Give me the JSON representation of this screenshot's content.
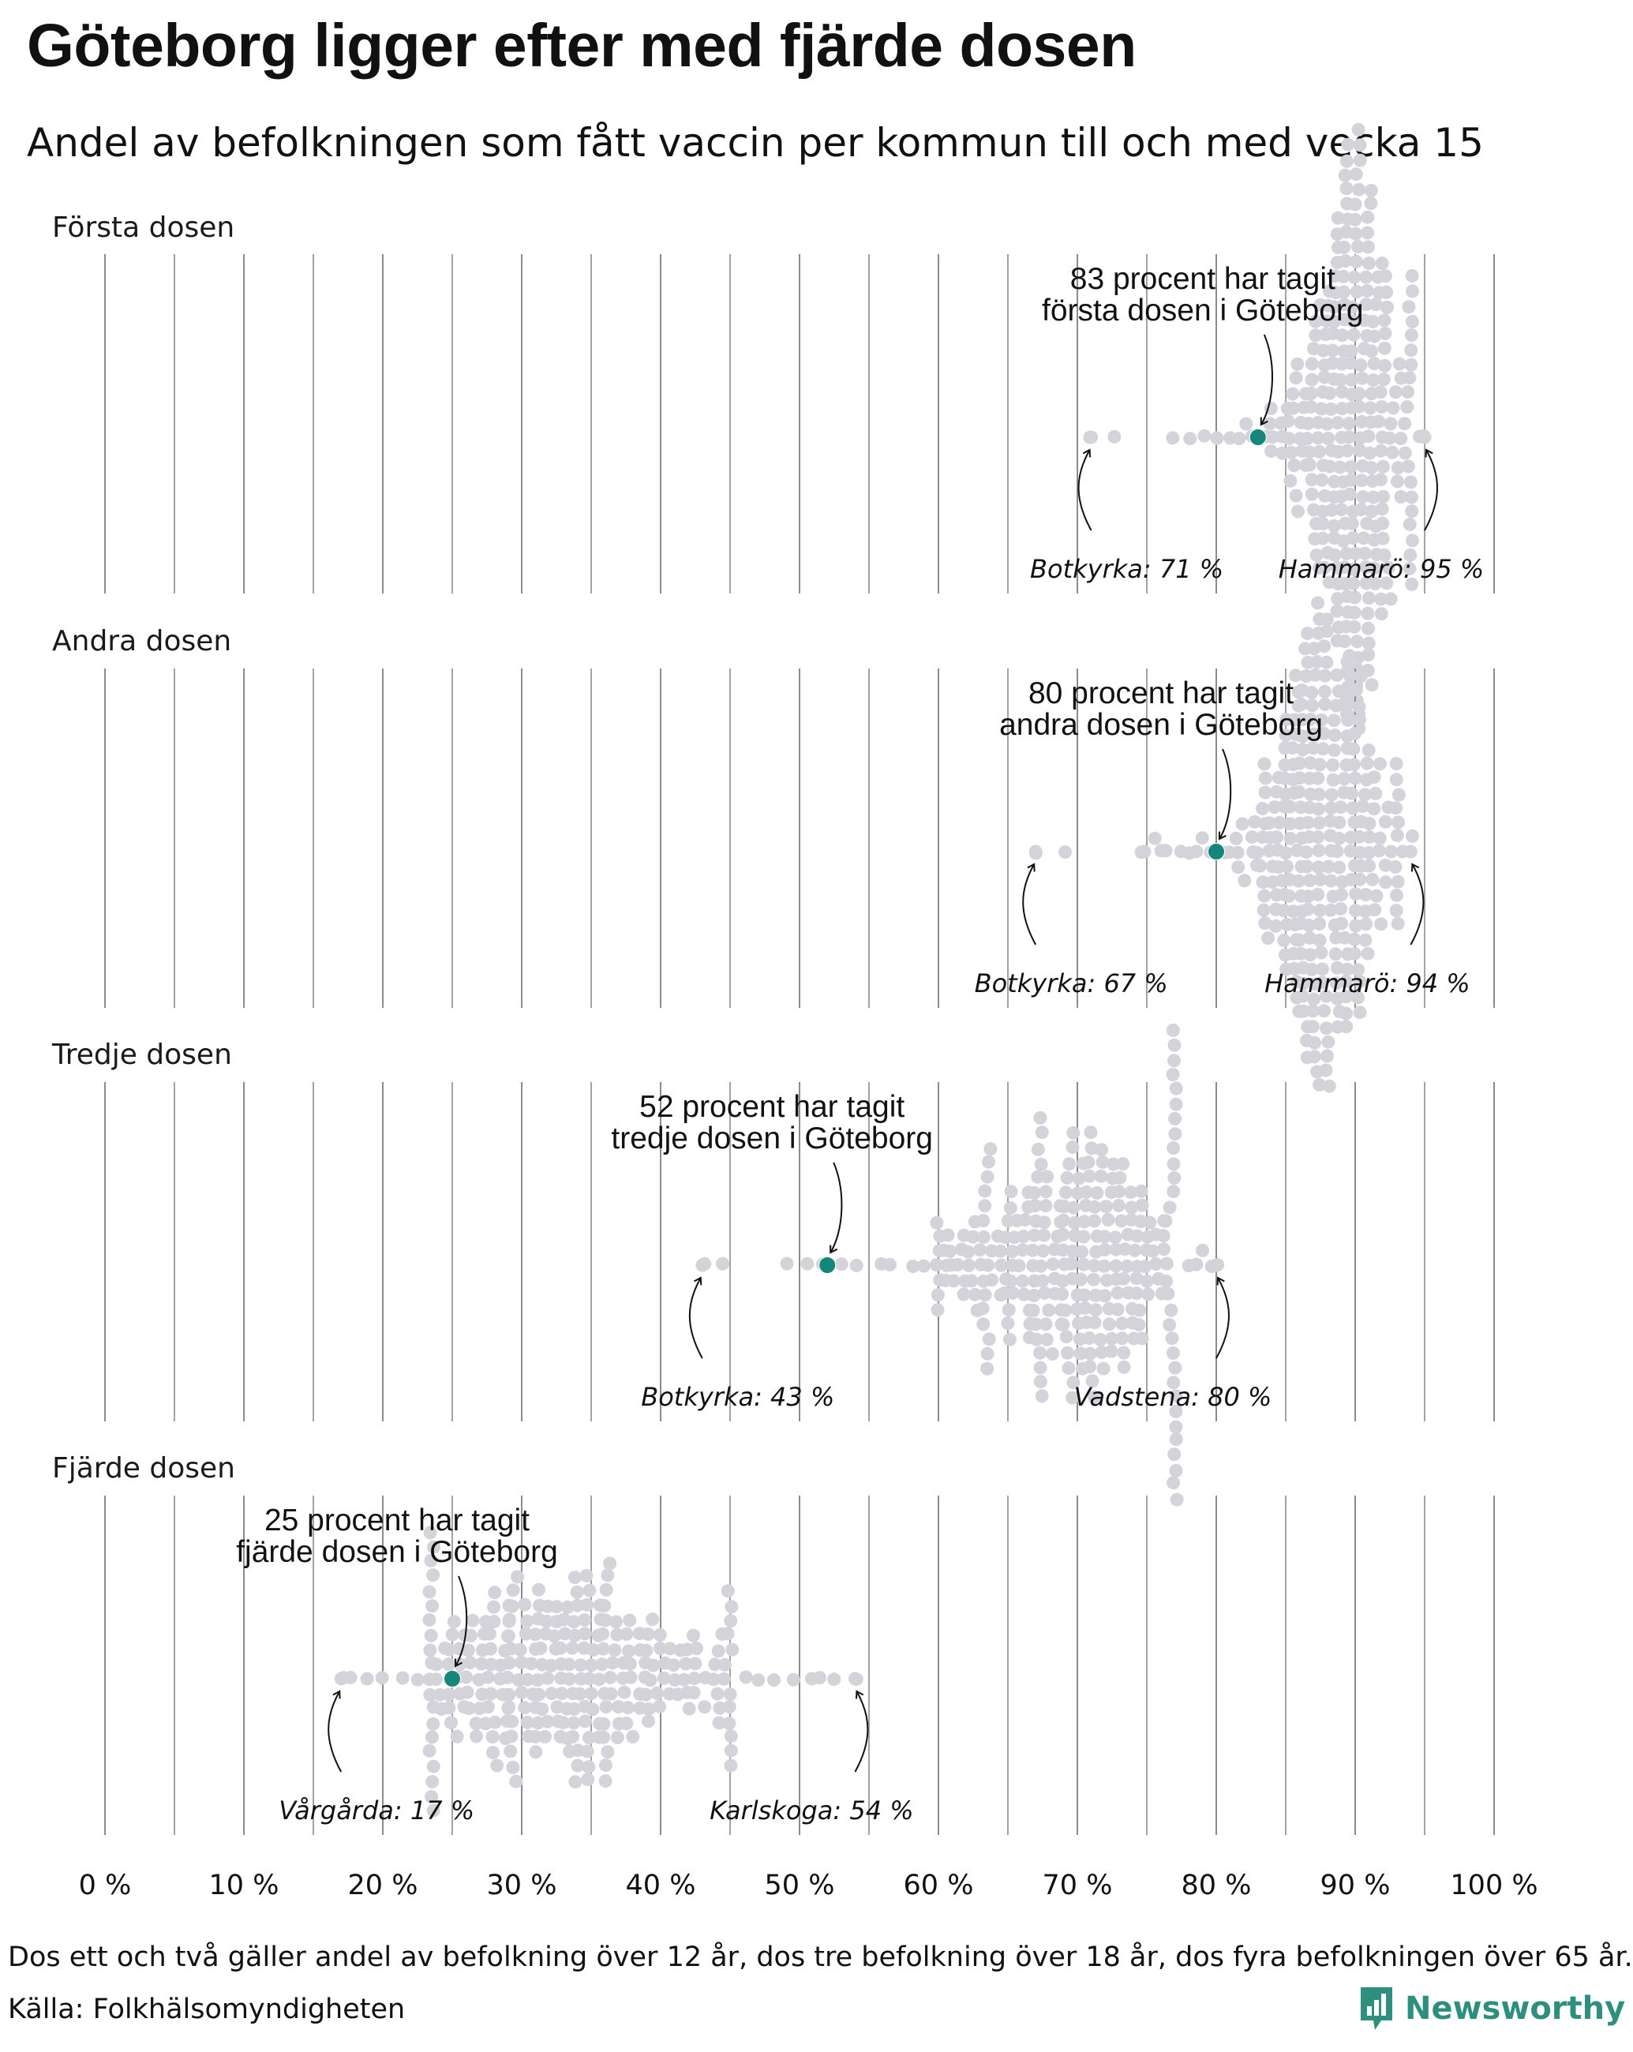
{
  "title": "Göteborg ligger efter med fjärde dosen",
  "subtitle": "Andel av befolkningen som fått vaccin per kommun till och med vecka 15",
  "colors": {
    "dot": "#d4d3da",
    "highlight": "#14867a",
    "gridline": "#8c8c8c",
    "brand": "#2e8f7e"
  },
  "chart_data": {
    "type": "scatter",
    "subtype": "beeswarm",
    "xlim": [
      0,
      100
    ],
    "x_ticks": [
      0,
      10,
      20,
      30,
      40,
      50,
      60,
      70,
      80,
      90,
      100
    ],
    "x_tick_labels": [
      "0 %",
      "10 %",
      "20 %",
      "30 %",
      "40 %",
      "50 %",
      "60 %",
      "70 %",
      "80 %",
      "90 %",
      "100 %"
    ],
    "xlabel": "",
    "ylabel": "",
    "grid": true,
    "unit": "percent",
    "series": [
      {
        "name": "Första dosen",
        "highlight": {
          "name": "Göteborg",
          "value": 83,
          "label_lines": [
            "83 procent har tagit",
            "första dosen i Göteborg"
          ]
        },
        "min": {
          "name": "Botkyrka",
          "value": 71,
          "label": "Botkyrka: 71 %"
        },
        "max": {
          "name": "Hammarö",
          "value": 95,
          "label": "Hammarö: 95 %"
        },
        "distribution": {
          "center": 90,
          "spread": 2.4,
          "count": 290,
          "low_tail": [
            71,
            72.5,
            77,
            78,
            79,
            80,
            81,
            81.5,
            82,
            82.5,
            83.5,
            84
          ],
          "high_tail": [
            94,
            94.5,
            95
          ]
        }
      },
      {
        "name": "Andra dosen",
        "highlight": {
          "name": "Göteborg",
          "value": 80,
          "label_lines": [
            "80 procent har tagit",
            "andra dosen i Göteborg"
          ]
        },
        "min": {
          "name": "Botkyrka",
          "value": 67,
          "label": "Botkyrka: 67 %"
        },
        "max": {
          "name": "Hammarö",
          "value": 94,
          "label": "Hammarö: 94 %"
        },
        "distribution": {
          "center": 87.5,
          "spread": 2.6,
          "count": 290,
          "low_tail": [
            67,
            69,
            74.5,
            75,
            75.5,
            76,
            76.5,
            77.5,
            78,
            78.5,
            79,
            79.5,
            80.5,
            81,
            81.5
          ],
          "high_tail": [
            93,
            93.5,
            94
          ]
        }
      },
      {
        "name": "Tredje dosen",
        "highlight": {
          "name": "Göteborg",
          "value": 52,
          "label_lines": [
            "52 procent har tagit",
            "tredje dosen i Göteborg"
          ]
        },
        "min": {
          "name": "Botkyrka",
          "value": 43,
          "label": "Botkyrka: 43 %"
        },
        "max": {
          "name": "Vadstena",
          "value": 80,
          "label": "Vadstena: 80 %"
        },
        "distribution": {
          "center": 69.5,
          "spread": 5.2,
          "count": 280,
          "low_tail": [
            43,
            44.5,
            49,
            50.5,
            51.5,
            53,
            54,
            56,
            56.5,
            58,
            59,
            60
          ],
          "high_tail": [
            77,
            78,
            78.5,
            79,
            79.5,
            80
          ]
        }
      },
      {
        "name": "Fjärde dosen",
        "highlight": {
          "name": "Göteborg",
          "value": 25,
          "label_lines": [
            "25 procent har tagit",
            "fjärde dosen i Göteborg"
          ]
        },
        "min": {
          "name": "Vårgårda",
          "value": 17,
          "label": "Vårgårda: 17 %"
        },
        "max": {
          "name": "Karlskoga",
          "value": 54,
          "label": "Karlskoga: 54 %"
        },
        "distribution": {
          "center": 33,
          "spread": 6.5,
          "count": 280,
          "low_tail": [
            17,
            17.8,
            19,
            20,
            21.5,
            22.5,
            23.5
          ],
          "high_tail": [
            45,
            46,
            47,
            48,
            49.5,
            51,
            51.5,
            52.5,
            54
          ]
        }
      }
    ]
  },
  "footer": {
    "note": "Dos ett och två gäller andel av befolkning över 12 år, dos tre befolkning över 18 år, dos fyra befolkningen över 65 år.",
    "source": "Källa: Folkhälsomyndigheten",
    "brand": "Newsworthy",
    "brand_icon": "newsworthy-logo-icon"
  }
}
